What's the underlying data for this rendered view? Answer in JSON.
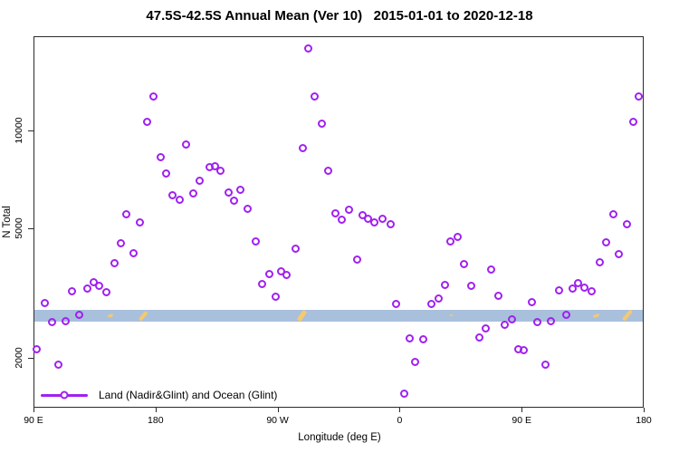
{
  "colors": {
    "point": "#A020F0",
    "band": "#A9C0DC",
    "band_mark": "#F6C96E",
    "axis": "#2b2b2b"
  },
  "chart_data": {
    "type": "scatter",
    "title": "47.5S-42.5S Annual Mean (Ver 10)   2015-01-01 to 2020-12-18",
    "xlabel": "Longitude (deg E)",
    "ylabel": "N Total",
    "y_scale": "log",
    "x_axis": {
      "note": "degrees east of 0, continuing eastward past 360; axis spans 90E to 180 around the globe 1.25 times",
      "range_deg": [
        90,
        540
      ],
      "ticks": [
        {
          "deg": 90,
          "label": "90 E"
        },
        {
          "deg": 180,
          "label": "180"
        },
        {
          "deg": 270,
          "label": "90 W"
        },
        {
          "deg": 360,
          "label": "0"
        },
        {
          "deg": 450,
          "label": "90 E"
        },
        {
          "deg": 540,
          "label": "180"
        }
      ]
    },
    "y_axis": {
      "range": [
        1400,
        19500
      ],
      "ticks": [
        {
          "value": 2000,
          "label": "2000"
        },
        {
          "value": 5000,
          "label": "5000"
        },
        {
          "value": 10000,
          "label": "10000"
        }
      ]
    },
    "band": {
      "y_min": 2590,
      "y_max": 2810
    },
    "band_marks": [
      {
        "deg": 147,
        "len": 6,
        "thick": 3,
        "rot": -20
      },
      {
        "deg": 171,
        "len": 12,
        "thick": 3.5,
        "rot": -50
      },
      {
        "deg": 288,
        "len": 13,
        "thick": 5,
        "rot": -55
      },
      {
        "deg": 398,
        "len": 3,
        "thick": 2,
        "rot": 0
      },
      {
        "deg": 505,
        "len": 7,
        "thick": 3,
        "rot": -20
      },
      {
        "deg": 528,
        "len": 14,
        "thick": 4,
        "rot": -50
      }
    ],
    "series": [
      {
        "name": "Land (Nadir&Glint) and Ocean (Glint)",
        "points": [
          [
            93,
            2120
          ],
          [
            99,
            2940
          ],
          [
            104,
            2570
          ],
          [
            109,
            1900
          ],
          [
            114,
            2580
          ],
          [
            119,
            3190
          ],
          [
            124,
            2700
          ],
          [
            130,
            3260
          ],
          [
            135,
            3400
          ],
          [
            139,
            3320
          ],
          [
            144,
            3170
          ],
          [
            150,
            3900
          ],
          [
            155,
            4490
          ],
          [
            159,
            5510
          ],
          [
            164,
            4180
          ],
          [
            169,
            5200
          ],
          [
            174,
            10600
          ],
          [
            179,
            12700
          ],
          [
            184,
            8240
          ],
          [
            188,
            7350
          ],
          [
            193,
            6300
          ],
          [
            198,
            6100
          ],
          [
            203,
            9020
          ],
          [
            208,
            6380
          ],
          [
            213,
            6980
          ],
          [
            220,
            7690
          ],
          [
            224,
            7740
          ],
          [
            228,
            7500
          ],
          [
            234,
            6430
          ],
          [
            238,
            6070
          ],
          [
            243,
            6550
          ],
          [
            248,
            5720
          ],
          [
            254,
            4540
          ],
          [
            259,
            3360
          ],
          [
            264,
            3610
          ],
          [
            269,
            3070
          ],
          [
            273,
            3680
          ],
          [
            277,
            3580
          ],
          [
            284,
            4320
          ],
          [
            289,
            8790
          ],
          [
            293,
            17800
          ],
          [
            298,
            12700
          ],
          [
            303,
            10450
          ],
          [
            308,
            7500
          ],
          [
            313,
            5540
          ],
          [
            318,
            5300
          ],
          [
            323,
            5690
          ],
          [
            329,
            4000
          ],
          [
            333,
            5470
          ],
          [
            337,
            5330
          ],
          [
            342,
            5200
          ],
          [
            348,
            5330
          ],
          [
            354,
            5130
          ],
          [
            358,
            2920
          ],
          [
            364,
            1550
          ],
          [
            368,
            2290
          ],
          [
            372,
            1940
          ],
          [
            378,
            2270
          ],
          [
            384,
            2920
          ],
          [
            389,
            3030
          ],
          [
            394,
            3340
          ],
          [
            398,
            4540
          ],
          [
            403,
            4690
          ],
          [
            408,
            3870
          ],
          [
            413,
            3320
          ],
          [
            419,
            2300
          ],
          [
            424,
            2460
          ],
          [
            428,
            3730
          ],
          [
            433,
            3090
          ],
          [
            438,
            2520
          ],
          [
            443,
            2620
          ],
          [
            448,
            2120
          ],
          [
            452,
            2100
          ],
          [
            458,
            2960
          ],
          [
            462,
            2570
          ],
          [
            468,
            1900
          ],
          [
            472,
            2580
          ],
          [
            478,
            3210
          ],
          [
            483,
            2700
          ],
          [
            488,
            3260
          ],
          [
            492,
            3390
          ],
          [
            497,
            3280
          ],
          [
            502,
            3190
          ],
          [
            508,
            3920
          ],
          [
            513,
            4520
          ],
          [
            518,
            5510
          ],
          [
            522,
            4150
          ],
          [
            528,
            5130
          ],
          [
            533,
            10600
          ],
          [
            537,
            12700
          ]
        ]
      }
    ],
    "legend": {
      "label": "Land (Nadir&Glint) and Ocean (Glint)",
      "position": "bottom-left-inside"
    }
  }
}
